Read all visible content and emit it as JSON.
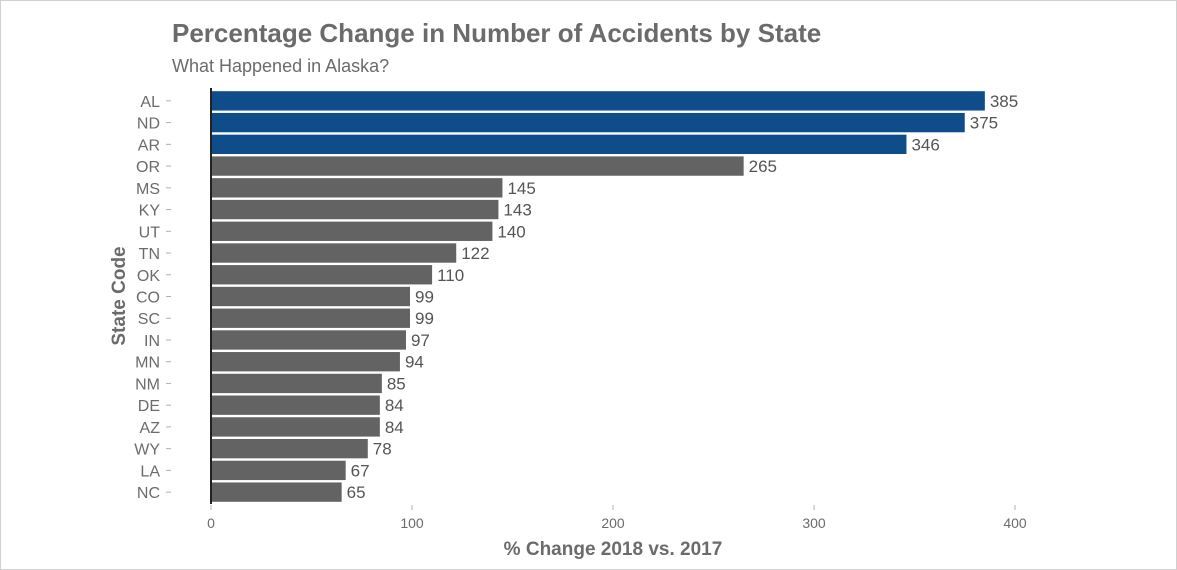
{
  "chart_data": {
    "type": "bar",
    "orientation": "horizontal",
    "title": "Percentage Change in Number of Accidents by State",
    "subtitle": "What Happened in Alaska?",
    "xlabel": "% Change 2018 vs. 2017",
    "ylabel": "State Code",
    "xlim": [
      0,
      400
    ],
    "xticks": [
      0,
      100,
      200,
      300,
      400
    ],
    "categories": [
      "AL",
      "ND",
      "AR",
      "OR",
      "MS",
      "KY",
      "UT",
      "TN",
      "OK",
      "CO",
      "SC",
      "IN",
      "MN",
      "NM",
      "DE",
      "AZ",
      "WY",
      "LA",
      "NC"
    ],
    "values": [
      385,
      375,
      346,
      265,
      145,
      143,
      140,
      122,
      110,
      99,
      99,
      97,
      94,
      85,
      84,
      84,
      78,
      67,
      65
    ],
    "highlighted": [
      "AL",
      "ND",
      "AR"
    ],
    "colors": {
      "highlight": "#0f4c8a",
      "default": "#636363",
      "axis": "#222222"
    },
    "grid": false,
    "legend": "none"
  }
}
